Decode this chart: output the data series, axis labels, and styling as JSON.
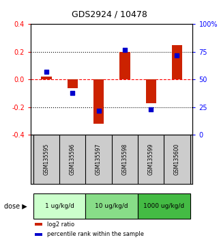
{
  "title": "GDS2924 / 10478",
  "samples": [
    "GSM135595",
    "GSM135596",
    "GSM135597",
    "GSM135598",
    "GSM135599",
    "GSM135600"
  ],
  "log2_ratio": [
    0.02,
    -0.06,
    -0.32,
    0.2,
    -0.17,
    0.25
  ],
  "percentile_rank": [
    57,
    38,
    22,
    77,
    23,
    72
  ],
  "dose_groups": [
    {
      "label": "1 ug/kg/d",
      "samples": [
        0,
        1
      ],
      "color": "#ccffcc"
    },
    {
      "label": "10 ug/kg/d",
      "samples": [
        2,
        3
      ],
      "color": "#88dd88"
    },
    {
      "label": "1000 ug/kg/d",
      "samples": [
        4,
        5
      ],
      "color": "#44bb44"
    }
  ],
  "bar_color": "#cc2200",
  "dot_color": "#0000cc",
  "ylim_left": [
    -0.4,
    0.4
  ],
  "ylim_right": [
    0,
    100
  ],
  "yticks_left": [
    -0.4,
    -0.2,
    0.0,
    0.2,
    0.4
  ],
  "yticks_right": [
    0,
    25,
    50,
    75,
    100
  ],
  "ytick_labels_right": [
    "0",
    "25",
    "50",
    "75",
    "100%"
  ],
  "hlines_dotted": [
    0.2,
    -0.2
  ],
  "hline_dashed": 0.0,
  "sample_bg_color": "#cccccc",
  "plot_bg_color": "#ffffff",
  "legend_log2": "log2 ratio",
  "legend_pct": "percentile rank within the sample",
  "dose_label": "dose"
}
